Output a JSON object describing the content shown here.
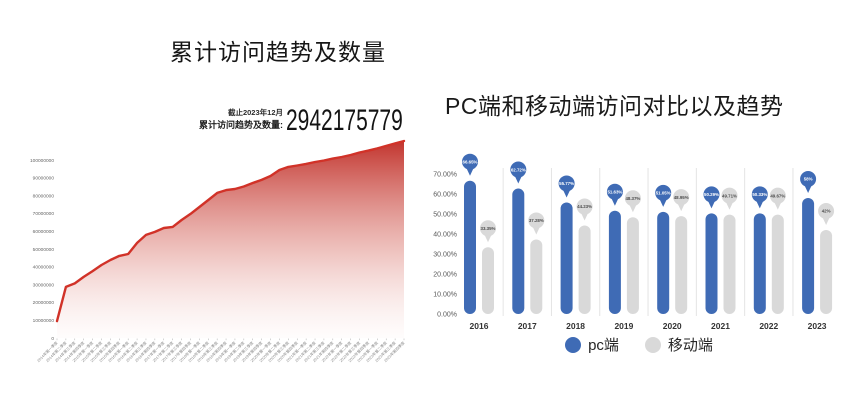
{
  "page": {
    "background": "#ffffff"
  },
  "left_chart": {
    "title": "累计访问趋势及数量",
    "as_of": "截止2023年12月",
    "stat_label": "累计访问趋势及数量:",
    "total": "2942175779"
  },
  "right_chart": {
    "title": "PC端和移动端访问对比以及趋势"
  },
  "chart_data": [
    {
      "id": "cumulative-visits-trend",
      "type": "area",
      "title": "累计访问趋势及数量",
      "annotation": {
        "as_of": "截止2023年12月",
        "label": "累计访问趋势及数量:",
        "value": "2942175779"
      },
      "line_color": "#d13228",
      "fill_gradient_top": "#bf2a23",
      "fill_gradient_bottom": "#fdf5f4",
      "ylim": [
        0,
        113000000
      ],
      "grid": false,
      "y_ticks": [
        "0",
        "10000000",
        "20000000",
        "30000000",
        "40000000",
        "50000000",
        "60000000",
        "70000000",
        "80000000",
        "90000000",
        "100000000"
      ],
      "x": [
        "2014年第一季度",
        "2014年第二季度",
        "2014年第三季度",
        "2014年第四季度",
        "2015年第一季度",
        "2015年第二季度",
        "2015年第三季度",
        "2015年第四季度",
        "2016年第一季度",
        "2016年第二季度",
        "2016年第三季度",
        "2016年第四季度",
        "2017年第一季度",
        "2017年第二季度",
        "2017年第三季度",
        "2017年第四季度",
        "2018年第一季度",
        "2018年第二季度",
        "2018年第三季度",
        "2018年第四季度",
        "2019年第一季度",
        "2019年第二季度",
        "2019年第三季度",
        "2019年第四季度",
        "2020年第一季度",
        "2020年第二季度",
        "2020年第三季度",
        "2020年第四季度",
        "2021年第一季度",
        "2021年第二季度",
        "2021年第三季度",
        "2021年第四季度",
        "2022年第一季度",
        "2022年第二季度",
        "2022年第三季度",
        "2022年第四季度",
        "2023年第一季度",
        "2023年第二季度",
        "2023年第三季度",
        "2023年第四季度"
      ],
      "values": [
        9500000,
        28700000,
        30700000,
        34300000,
        37600000,
        41000000,
        43800000,
        46100000,
        47200000,
        53400000,
        57900000,
        59600000,
        61800000,
        62400000,
        66300000,
        69700000,
        73600000,
        77500000,
        81500000,
        83100000,
        83700000,
        85100000,
        87100000,
        88800000,
        91000000,
        94400000,
        96100000,
        96900000,
        97800000,
        98900000,
        99700000,
        100800000,
        101700000,
        102800000,
        104200000,
        105300000,
        106500000,
        107900000,
        109300000,
        110700000
      ]
    },
    {
      "id": "pc-vs-mobile",
      "type": "bar",
      "title": "PC端和移动端访问对比以及趋势",
      "categories": [
        "2016",
        "2017",
        "2018",
        "2019",
        "2020",
        "2021",
        "2022",
        "2023"
      ],
      "series": [
        {
          "key": "pc",
          "name": "pc端",
          "color": "#3F6BB5",
          "label_text_color": "#ffffff",
          "values": [
            66.65,
            62.72,
            55.77,
            51.63,
            51.05,
            50.29,
            50.33,
            58
          ],
          "labels": [
            "66.65%",
            "62.72%",
            "55.77%",
            "51.63%",
            "51.05%",
            "50.29%",
            "50.33%",
            "58%"
          ]
        },
        {
          "key": "mobile",
          "name": "移动端",
          "color": "#D9D9D9",
          "label_text_color": "#4d4d4d",
          "values": [
            33.35,
            37.28,
            44.23,
            48.37,
            48.95,
            49.71,
            49.67,
            42
          ],
          "labels": [
            "33.35%",
            "37.28%",
            "44.23%",
            "48.37%",
            "48.95%",
            "49.71%",
            "49.67%",
            "42%"
          ]
        }
      ],
      "y_ticks": [
        "0.00%",
        "10.00%",
        "20.00%",
        "30.00%",
        "40.00%",
        "50.00%",
        "60.00%",
        "70.00%"
      ],
      "ylim": [
        0,
        70
      ],
      "grid": false,
      "separator_color": "#e4e4e4",
      "axis_label_color": "#595959",
      "legend_position": "bottom"
    }
  ]
}
